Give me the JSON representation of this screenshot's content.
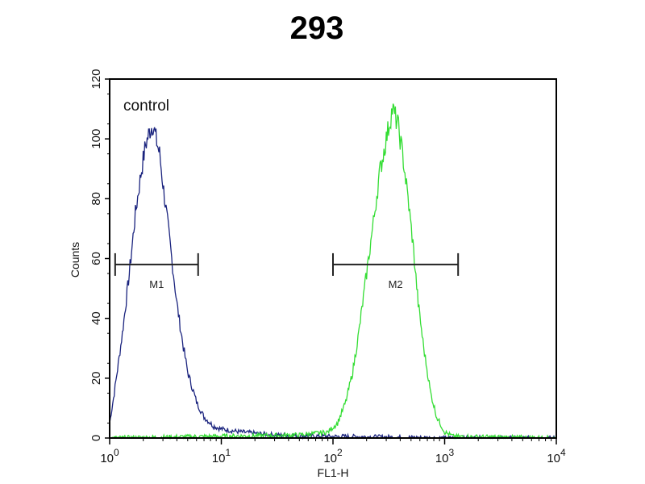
{
  "chart_data": {
    "type": "line",
    "title": "293",
    "xlabel": "FL1-H",
    "ylabel": "Counts",
    "xscale": "log",
    "xlim": [
      1,
      10000
    ],
    "ylim": [
      0,
      120
    ],
    "xticks": [
      {
        "base": "10",
        "exp": "0"
      },
      {
        "base": "10",
        "exp": "1"
      },
      {
        "base": "10",
        "exp": "2"
      },
      {
        "base": "10",
        "exp": "3"
      },
      {
        "base": "10",
        "exp": "4"
      }
    ],
    "yticks": [
      "0",
      "20",
      "40",
      "60",
      "80",
      "100",
      "120"
    ],
    "grid": false,
    "annotations": [
      {
        "text": "control"
      }
    ],
    "markers": [
      {
        "label": "M1",
        "x_range": [
          1.12,
          6.2
        ],
        "y": 58
      },
      {
        "label": "M2",
        "x_range": [
          100,
          1320
        ],
        "y": 58
      }
    ],
    "series": [
      {
        "color": "#1a237e",
        "x": [
          1.0,
          1.1,
          1.3,
          1.5,
          1.7,
          1.9,
          2.1,
          2.3,
          2.45,
          2.6,
          2.8,
          3.0,
          3.3,
          3.6,
          4.0,
          4.5,
          5.0,
          6.0,
          7.0,
          8.5,
          10,
          15,
          30,
          100,
          150,
          1000,
          10000
        ],
        "y": [
          5,
          15,
          35,
          55,
          75,
          88,
          98,
          103,
          105,
          100,
          95,
          85,
          72,
          60,
          45,
          32,
          22,
          12,
          7,
          4,
          3,
          2,
          1,
          0.5,
          0.5,
          0,
          0
        ]
      },
      {
        "color": "#33dd33",
        "x": [
          1,
          50,
          90,
          110,
          130,
          150,
          170,
          200,
          230,
          260,
          300,
          340,
          380,
          420,
          470,
          520,
          580,
          650,
          750,
          850,
          1000,
          1200,
          10000
        ],
        "y": [
          0,
          1,
          2,
          5,
          12,
          22,
          35,
          55,
          72,
          88,
          100,
          110,
          105,
          95,
          80,
          65,
          45,
          30,
          15,
          7,
          2,
          0.5,
          0
        ]
      }
    ]
  }
}
